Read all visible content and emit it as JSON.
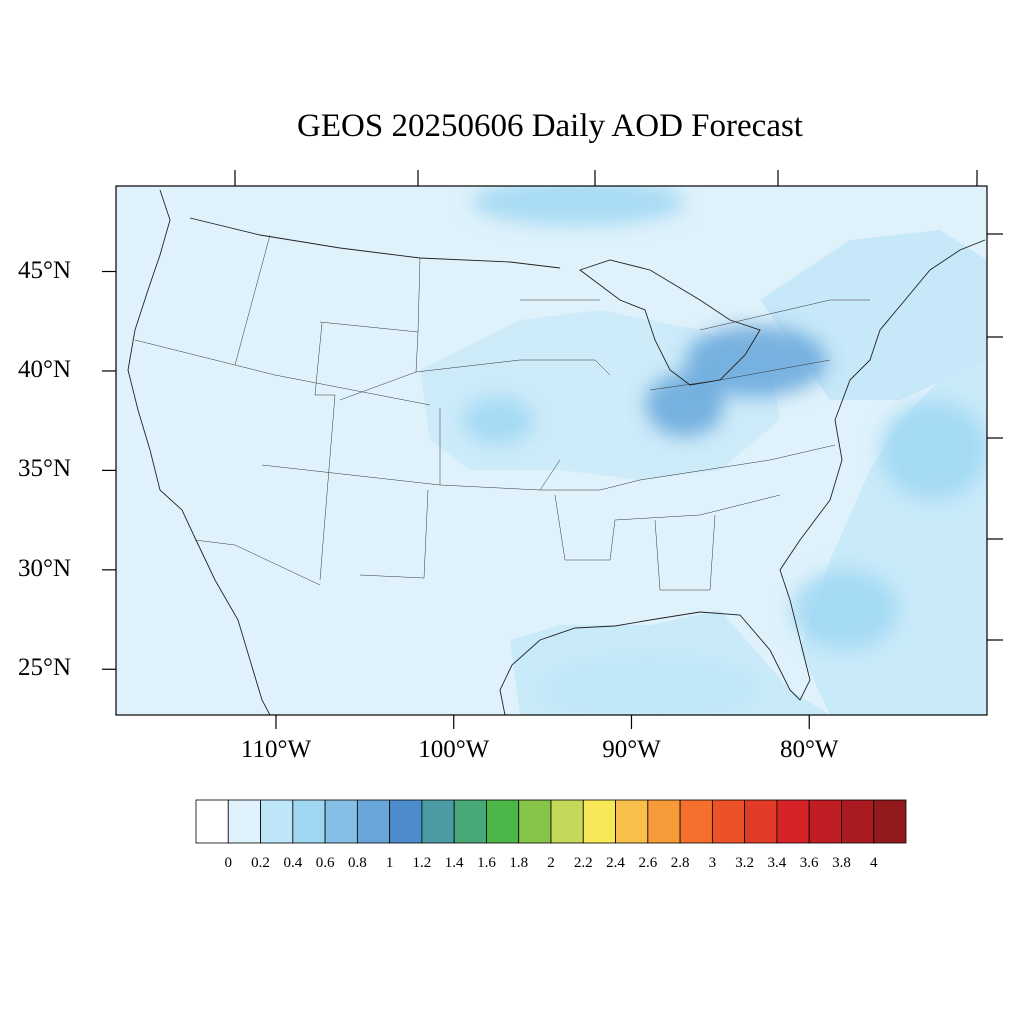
{
  "title": "GEOS 20250606 Daily AOD Forecast",
  "map": {
    "region": "Contiguous United States",
    "lon_range": [
      -119,
      -70
    ],
    "lat_range": [
      22.7,
      49.3
    ],
    "lat_labels": [
      "45°N",
      "40°N",
      "35°N",
      "30°N",
      "25°N"
    ],
    "lat_values": [
      45,
      40,
      35,
      30,
      25
    ],
    "lon_labels": [
      "110°W",
      "100°W",
      "90°W",
      "80°W"
    ],
    "lon_values": [
      -110,
      -100,
      -90,
      -80
    ],
    "base_fill": "#dff2fb",
    "plumes": [
      {
        "lon": -83,
        "lat": 40.5,
        "rx": 4,
        "ry": 1.8,
        "level": 0.8
      },
      {
        "lon": -87,
        "lat": 38.3,
        "rx": 2.2,
        "ry": 1.6,
        "level": 0.8
      },
      {
        "lon": -97.5,
        "lat": 37.5,
        "rx": 2.0,
        "ry": 1.2,
        "level": 0.6
      },
      {
        "lon": -93,
        "lat": 48.5,
        "rx": 6,
        "ry": 1.2,
        "level": 0.6
      },
      {
        "lon": -78,
        "lat": 28,
        "rx": 3,
        "ry": 2,
        "level": 0.4
      },
      {
        "lon": -73,
        "lat": 36,
        "rx": 3,
        "ry": 2.5,
        "level": 0.4
      },
      {
        "lon": -89,
        "lat": 24,
        "rx": 6,
        "ry": 1.5,
        "level": 0.2
      }
    ]
  },
  "colorbar": {
    "labels": [
      "0",
      "0.2",
      "0.4",
      "0.6",
      "0.8",
      "1",
      "1.2",
      "1.4",
      "1.6",
      "1.8",
      "2",
      "2.2",
      "2.4",
      "2.6",
      "2.8",
      "3",
      "3.2",
      "3.4",
      "3.6",
      "3.8",
      "4"
    ],
    "colors": [
      "#ffffff",
      "#dff2fb",
      "#bde6f8",
      "#9fd7f3",
      "#85bfe6",
      "#69a7da",
      "#4d8ccc",
      "#4a9ba4",
      "#48a877",
      "#4cb649",
      "#86c54a",
      "#c6d85a",
      "#f8e858",
      "#f8c04a",
      "#f79a3a",
      "#f4702c",
      "#ec5228",
      "#e23c26",
      "#d72228",
      "#c11d24",
      "#aa1b21",
      "#921a1c"
    ]
  }
}
